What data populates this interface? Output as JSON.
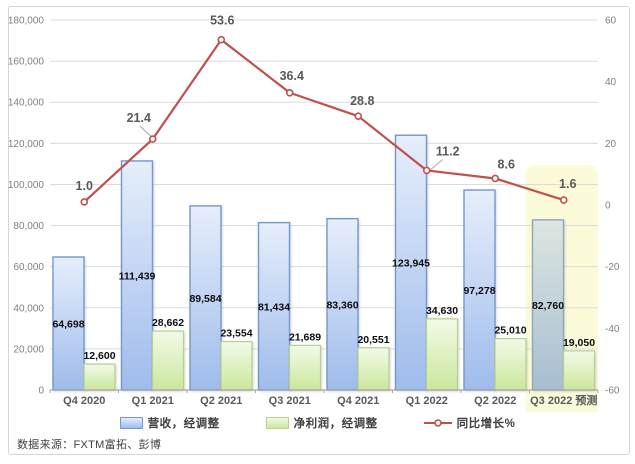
{
  "source": "数据来源：FXTM富拓、彭博",
  "legend": [
    {
      "label": "营收，经调整"
    },
    {
      "label": "净利润，经调整"
    },
    {
      "label": "同比增长%"
    }
  ],
  "chart_data": {
    "type": "bar",
    "subtype": "grouped bars with secondary-axis line (combo chart)",
    "categories": [
      "Q4 2020",
      "Q1 2021",
      "Q2 2021",
      "Q3 2021",
      "Q4 2021",
      "Q1 2022",
      "Q2 2022",
      "Q3 2022 预测"
    ],
    "series": [
      {
        "name": "营收，经调整",
        "type": "bar",
        "axis": "left",
        "values": [
          64698,
          111439,
          89584,
          81434,
          83360,
          123945,
          97278,
          82760
        ]
      },
      {
        "name": "净利润，经调整",
        "type": "bar",
        "axis": "left",
        "values": [
          12600,
          28662,
          23554,
          21689,
          20551,
          34630,
          25010,
          19050
        ]
      },
      {
        "name": "同比增长%",
        "type": "line",
        "axis": "right",
        "values": [
          1.0,
          21.4,
          53.6,
          36.4,
          28.8,
          11.2,
          8.6,
          1.6
        ]
      }
    ],
    "left_axis": {
      "min": 0,
      "max": 180000,
      "step": 20000
    },
    "right_axis": {
      "min": -60,
      "max": 60,
      "step": 20
    },
    "grid": true,
    "legend_position": "bottom",
    "forecast_category_index": 7,
    "colors": {
      "revenue_bar_top": "#e6eefb",
      "revenue_bar_bottom": "#9fbcec",
      "revenue_bar_border": "#7498cb",
      "profit_bar_top": "#f2fae8",
      "profit_bar_bottom": "#cbe79c",
      "profit_bar_border": "#b7cf90",
      "forecast_bar_top": "#dde6e0",
      "forecast_bar_bottom": "#a7bed2",
      "forecast_bar_border": "#8fa9b4",
      "growth_line": "#c0504d",
      "forecast_highlight": "#fbfbda",
      "grid_line": "#dcdcdc",
      "axis_line": "#a6a6a6",
      "tick_label": "#7f7f7f",
      "category_label": "#595959",
      "bar_label": "#0d0d0d",
      "line_label": "#595959"
    }
  }
}
